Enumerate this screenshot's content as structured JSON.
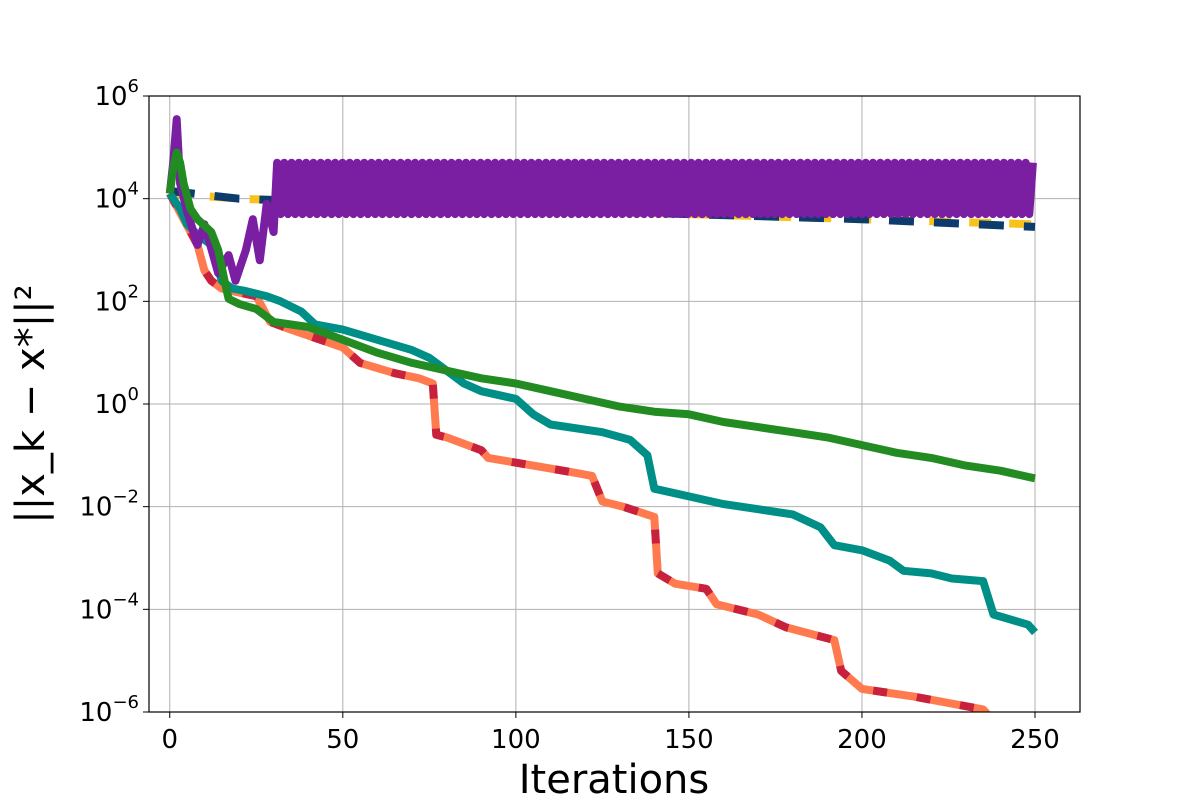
{
  "chart_data": {
    "type": "line",
    "title": "",
    "xlabel": "Iterations",
    "ylabel": "||x_k − x*||²",
    "yscale": "log",
    "xlim": [
      -6,
      263
    ],
    "ylim_exponent": [
      -6,
      6
    ],
    "xticks": [
      0,
      50,
      100,
      150,
      200,
      250
    ],
    "yticks": [
      {
        "base": "10",
        "exp": "−6",
        "value": -6
      },
      {
        "base": "10",
        "exp": "−4",
        "value": -4
      },
      {
        "base": "10",
        "exp": "−2",
        "value": -2
      },
      {
        "base": "10",
        "exp": "0",
        "value": 0
      },
      {
        "base": "10",
        "exp": "2",
        "value": 2
      },
      {
        "base": "10",
        "exp": "4",
        "value": 4
      },
      {
        "base": "10",
        "exp": "6",
        "value": 6
      }
    ],
    "grid": true,
    "legend": "none",
    "value_note": "y values are log10 of the plotted quantity",
    "series": [
      {
        "color": "#f7c21b",
        "dash": [
          22,
          18
        ],
        "points": [
          [
            0,
            4.1
          ],
          [
            20,
            4.0
          ],
          [
            60,
            3.9
          ],
          [
            100,
            3.8
          ],
          [
            150,
            3.7
          ],
          [
            200,
            3.6
          ],
          [
            250,
            3.5
          ]
        ]
      },
      {
        "color": "#0d3b6e",
        "dash": [
          25,
          20
        ],
        "points": [
          [
            0,
            4.15
          ],
          [
            20,
            4.0
          ],
          [
            60,
            3.9
          ],
          [
            100,
            3.8
          ],
          [
            150,
            3.7
          ],
          [
            200,
            3.6
          ],
          [
            250,
            3.45
          ]
        ]
      },
      {
        "color": "#ff7b4f",
        "points": [
          [
            0,
            4.1
          ],
          [
            4,
            3.6
          ],
          [
            8,
            3.1
          ],
          [
            10,
            2.6
          ],
          [
            12,
            2.4
          ],
          [
            15,
            2.25
          ],
          [
            18,
            2.2
          ],
          [
            25,
            2.1
          ],
          [
            29,
            1.6
          ],
          [
            35,
            1.45
          ],
          [
            50,
            1.1
          ],
          [
            55,
            0.8
          ],
          [
            65,
            0.6
          ],
          [
            72,
            0.5
          ],
          [
            76,
            0.4
          ],
          [
            77,
            -0.6
          ],
          [
            80,
            -0.65
          ],
          [
            90,
            -0.9
          ],
          [
            92,
            -1.05
          ],
          [
            105,
            -1.2
          ],
          [
            118,
            -1.35
          ],
          [
            122,
            -1.4
          ],
          [
            125,
            -1.9
          ],
          [
            131,
            -2.0
          ],
          [
            140,
            -2.2
          ],
          [
            141,
            -3.3
          ],
          [
            146,
            -3.5
          ],
          [
            155,
            -3.6
          ],
          [
            158,
            -3.9
          ],
          [
            170,
            -4.1
          ],
          [
            178,
            -4.35
          ],
          [
            192,
            -4.6
          ],
          [
            194,
            -5.2
          ],
          [
            200,
            -5.55
          ],
          [
            215,
            -5.7
          ],
          [
            235,
            -5.95
          ],
          [
            237,
            -6.1
          ]
        ]
      },
      {
        "color": "#c7213d",
        "dash": [
          14,
          30
        ],
        "points": [
          [
            0,
            4.1
          ],
          [
            4,
            3.6
          ],
          [
            8,
            3.1
          ],
          [
            10,
            2.6
          ],
          [
            12,
            2.4
          ],
          [
            15,
            2.25
          ],
          [
            18,
            2.2
          ],
          [
            25,
            2.1
          ],
          [
            29,
            1.6
          ],
          [
            35,
            1.45
          ],
          [
            50,
            1.1
          ],
          [
            55,
            0.8
          ],
          [
            65,
            0.6
          ],
          [
            72,
            0.5
          ],
          [
            76,
            0.4
          ],
          [
            77,
            -0.6
          ],
          [
            80,
            -0.65
          ],
          [
            90,
            -0.9
          ],
          [
            92,
            -1.05
          ],
          [
            105,
            -1.2
          ],
          [
            118,
            -1.35
          ],
          [
            122,
            -1.4
          ],
          [
            125,
            -1.9
          ],
          [
            131,
            -2.0
          ],
          [
            140,
            -2.2
          ],
          [
            141,
            -3.3
          ],
          [
            146,
            -3.5
          ],
          [
            155,
            -3.6
          ],
          [
            158,
            -3.9
          ],
          [
            170,
            -4.1
          ],
          [
            178,
            -4.35
          ],
          [
            192,
            -4.6
          ],
          [
            194,
            -5.2
          ],
          [
            200,
            -5.55
          ],
          [
            215,
            -5.7
          ],
          [
            235,
            -5.95
          ],
          [
            237,
            -6.1
          ]
        ]
      },
      {
        "color": "#008f86",
        "points": [
          [
            0,
            4.1
          ],
          [
            3,
            3.8
          ],
          [
            5,
            3.5
          ],
          [
            8,
            3.3
          ],
          [
            12,
            3.1
          ],
          [
            15,
            2.4
          ],
          [
            18,
            2.25
          ],
          [
            22,
            2.2
          ],
          [
            28,
            2.1
          ],
          [
            32,
            2.0
          ],
          [
            38,
            1.8
          ],
          [
            42,
            1.55
          ],
          [
            50,
            1.45
          ],
          [
            55,
            1.35
          ],
          [
            60,
            1.25
          ],
          [
            70,
            1.05
          ],
          [
            75,
            0.9
          ],
          [
            80,
            0.65
          ],
          [
            85,
            0.4
          ],
          [
            90,
            0.25
          ],
          [
            100,
            0.1
          ],
          [
            105,
            -0.2
          ],
          [
            110,
            -0.4
          ],
          [
            125,
            -0.55
          ],
          [
            133,
            -0.7
          ],
          [
            138,
            -1.0
          ],
          [
            140,
            -1.65
          ],
          [
            150,
            -1.8
          ],
          [
            160,
            -1.95
          ],
          [
            170,
            -2.05
          ],
          [
            180,
            -2.15
          ],
          [
            188,
            -2.4
          ],
          [
            192,
            -2.75
          ],
          [
            200,
            -2.85
          ],
          [
            208,
            -3.05
          ],
          [
            212,
            -3.25
          ],
          [
            220,
            -3.3
          ],
          [
            226,
            -3.4
          ],
          [
            235,
            -3.45
          ],
          [
            238,
            -4.1
          ],
          [
            243,
            -4.2
          ],
          [
            248,
            -4.3
          ],
          [
            250,
            -4.45
          ]
        ]
      },
      {
        "color": "#7a1fa2",
        "zigzag": {
          "start": 0,
          "end": 250,
          "low_exp": 3.7,
          "high_exp": 4.7,
          "period": 2.1
        }
      },
      {
        "color": "#228b22",
        "points": [
          [
            0,
            4.1
          ],
          [
            1,
            4.6
          ],
          [
            2,
            4.9
          ],
          [
            3,
            4.7
          ],
          [
            4,
            4.3
          ],
          [
            6,
            3.8
          ],
          [
            8,
            3.6
          ],
          [
            12,
            3.35
          ],
          [
            14,
            3.0
          ],
          [
            16,
            2.35
          ],
          [
            17,
            2.05
          ],
          [
            20,
            1.95
          ],
          [
            25,
            1.85
          ],
          [
            30,
            1.6
          ],
          [
            40,
            1.5
          ],
          [
            50,
            1.25
          ],
          [
            60,
            1.0
          ],
          [
            70,
            0.8
          ],
          [
            80,
            0.65
          ],
          [
            90,
            0.5
          ],
          [
            100,
            0.4
          ],
          [
            110,
            0.25
          ],
          [
            120,
            0.1
          ],
          [
            130,
            -0.05
          ],
          [
            140,
            -0.15
          ],
          [
            150,
            -0.2
          ],
          [
            160,
            -0.35
          ],
          [
            170,
            -0.45
          ],
          [
            180,
            -0.55
          ],
          [
            190,
            -0.65
          ],
          [
            200,
            -0.8
          ],
          [
            210,
            -0.95
          ],
          [
            220,
            -1.05
          ],
          [
            230,
            -1.2
          ],
          [
            240,
            -1.3
          ],
          [
            250,
            -1.45
          ]
        ]
      }
    ]
  }
}
